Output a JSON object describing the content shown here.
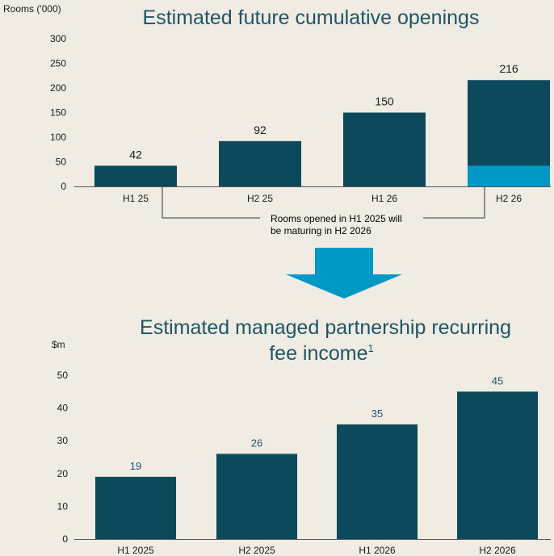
{
  "colors": {
    "background": "#f0ece4",
    "bar_dark": "#0c4a5b",
    "bar_accent": "#0098c4",
    "title": "#1d5564",
    "text": "#1a1a1a",
    "axis": "#555555",
    "arrow": "#0098c4"
  },
  "bracket_note": {
    "line1": "Rooms opened in H1 2025 will",
    "line2": "be maturing in H2 2026"
  },
  "chart_data": [
    {
      "type": "bar",
      "title": "Estimated future cumulative openings",
      "ylabel": "Rooms ('000)",
      "categories": [
        "H1 25",
        "H2 25",
        "H1 26",
        "H2 26"
      ],
      "values": [
        42,
        92,
        150,
        216
      ],
      "data_labels": [
        "42",
        "92",
        "150",
        "216"
      ],
      "stacked_bottom_segment": {
        "category_index": 3,
        "value": 42
      },
      "yticks": [
        0,
        50,
        100,
        150,
        200,
        250,
        300
      ],
      "ylim": [
        0,
        300
      ],
      "grid": false
    },
    {
      "type": "bar",
      "title_line1": "Estimated managed partnership recurring",
      "title_line2": "fee income",
      "title_superscript": "1",
      "ylabel": "$m",
      "categories": [
        "H1 2025",
        "H2 2025",
        "H1 2026",
        "H2 2026"
      ],
      "values": [
        19,
        26,
        35,
        45
      ],
      "data_labels": [
        "19",
        "26",
        "35",
        "45"
      ],
      "yticks": [
        0,
        10,
        20,
        30,
        40,
        50
      ],
      "ylim": [
        0,
        50
      ],
      "grid": false
    }
  ]
}
